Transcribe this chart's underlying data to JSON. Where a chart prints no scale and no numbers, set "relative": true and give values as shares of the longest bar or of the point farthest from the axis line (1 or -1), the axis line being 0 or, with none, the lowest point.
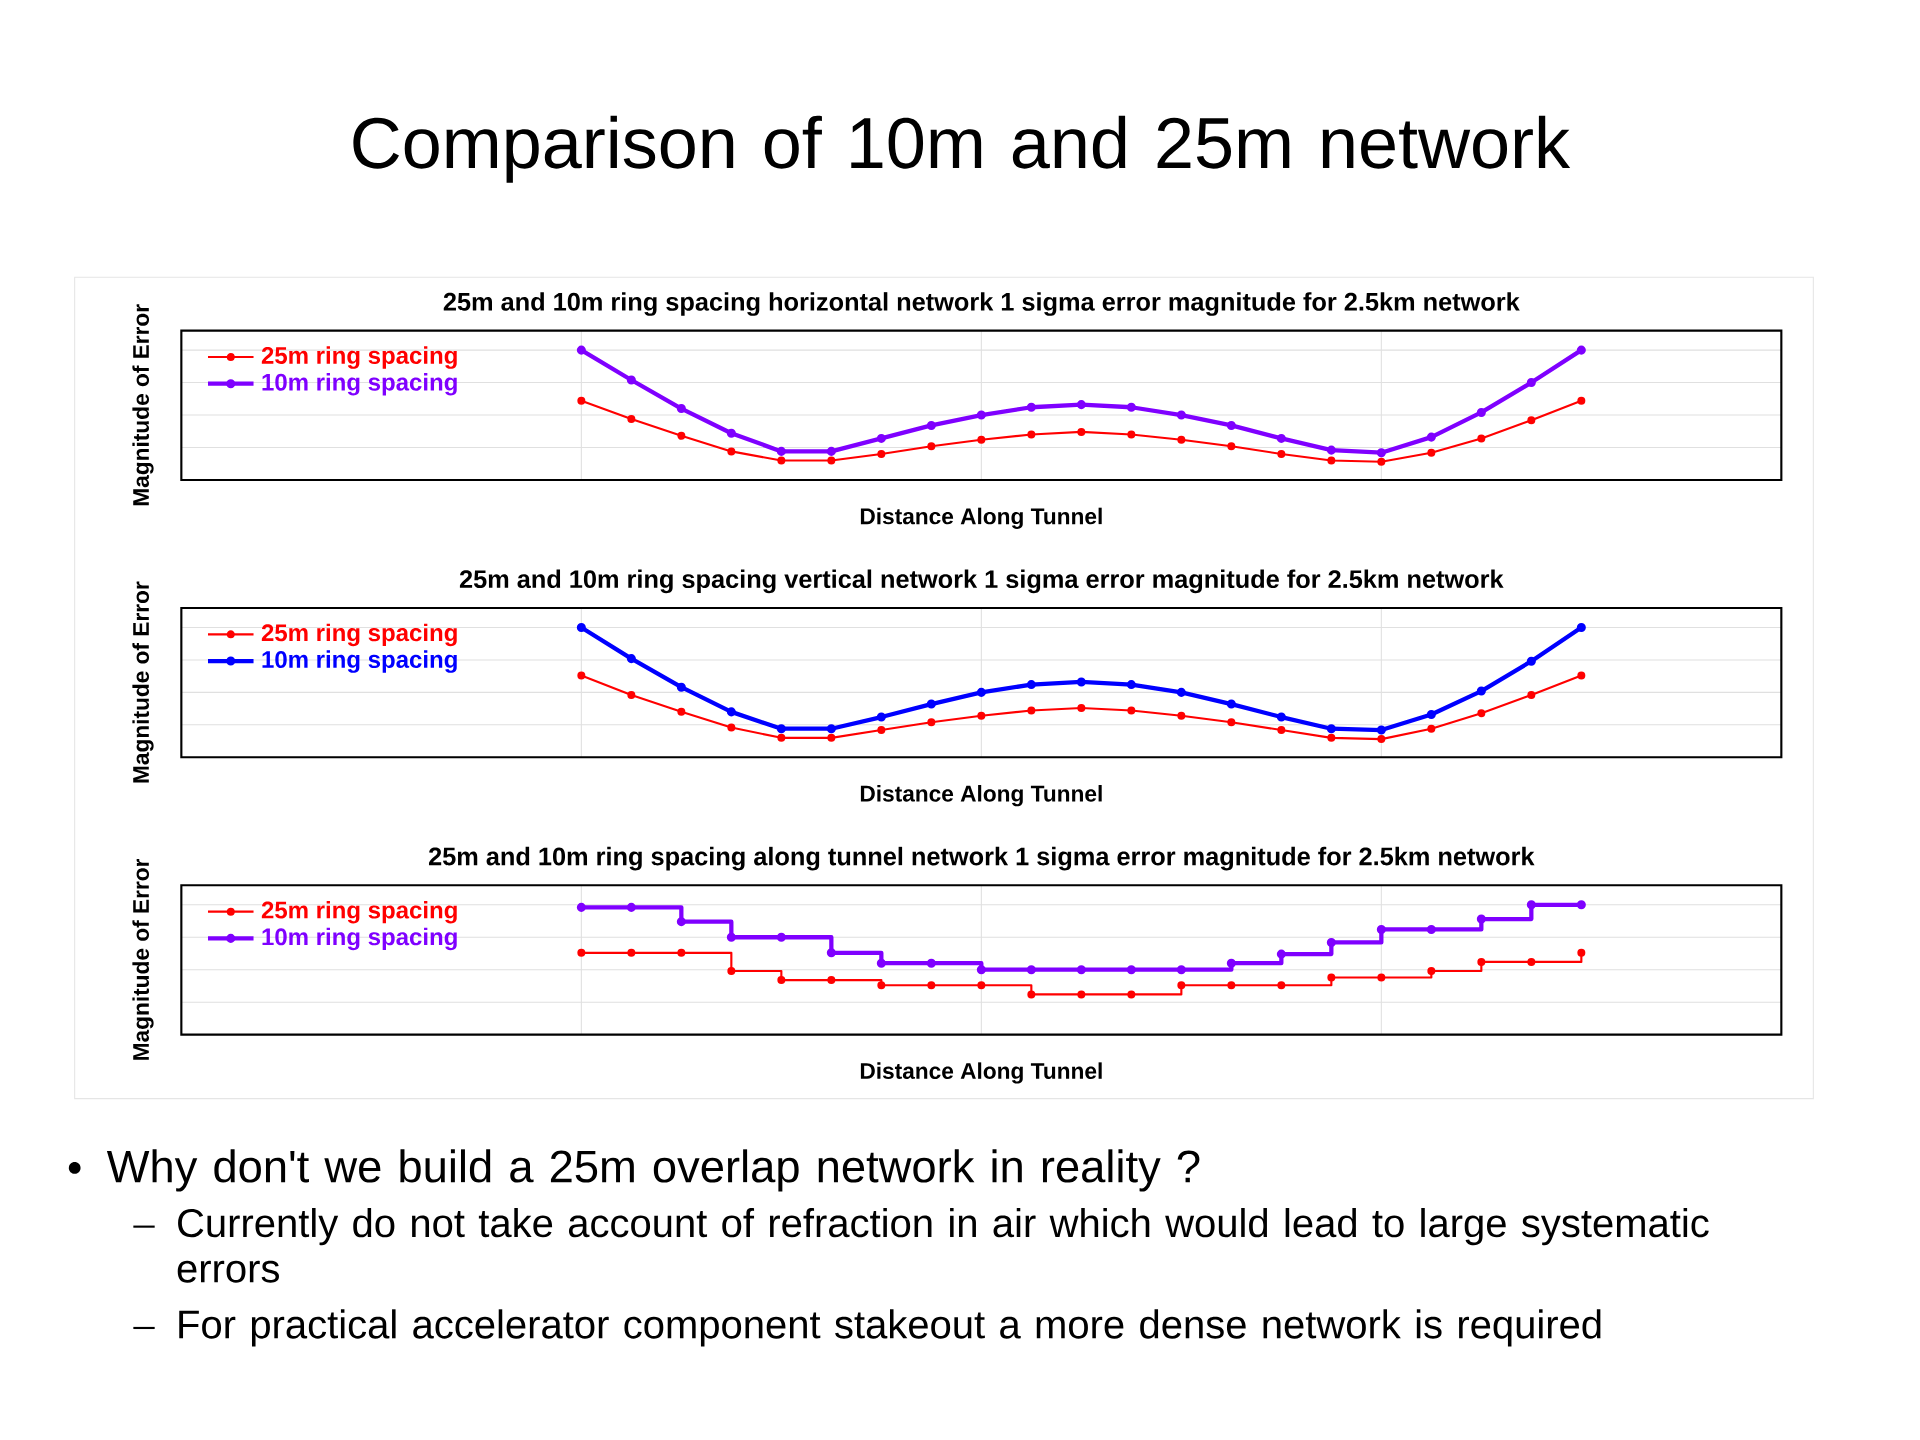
{
  "chart_data": [
    {
      "type": "other",
      "title": "Comparison of 10m and 25m network",
      "annotations": [
        "Why don't we build a 25m overlap network in reality ?",
        "Currently do not take account of refraction in air which would lead to large systematic errors",
        "For practical accelerator component stakeout a more dense network is required"
      ]
    },
    {
      "type": "line",
      "title": "25m and 10m ring spacing horizontal network 1 sigma error magnitude for 2.5km network",
      "xlabel": "Distance Along Tunnel",
      "ylabel": "Magnitude of Error",
      "relative": true,
      "legend": "top left",
      "marker": "circle",
      "grid": true,
      "categories": [
        null,
        null,
        null,
        null,
        null,
        null,
        null,
        null,
        null,
        null,
        null,
        null,
        null,
        null,
        null,
        null,
        null,
        null,
        null,
        null,
        null,
        null,
        null,
        null,
        null,
        null,
        null,
        null,
        null,
        null,
        null,
        null,
        null
      ],
      "series": [
        {
          "name": "25m ring spacing",
          "color": "#ff0000",
          "values": [
            null,
            null,
            null,
            null,
            null,
            null,
            null,
            null,
            0.61,
            0.47,
            0.34,
            0.22,
            0.15,
            0.15,
            0.2,
            0.26,
            0.31,
            0.35,
            0.37,
            0.35,
            0.31,
            0.26,
            0.2,
            0.15,
            0.14,
            0.21,
            0.32,
            0.46,
            0.61,
            null,
            null,
            null,
            null
          ]
        },
        {
          "name": "10m ring spacing",
          "color": "#7f00ff",
          "values": [
            null,
            null,
            null,
            null,
            null,
            null,
            null,
            null,
            1.0,
            0.77,
            0.55,
            0.36,
            0.22,
            0.22,
            0.32,
            0.42,
            0.5,
            0.56,
            0.58,
            0.56,
            0.5,
            0.42,
            0.32,
            0.23,
            0.21,
            0.33,
            0.52,
            0.75,
            1.0,
            null,
            null,
            null,
            null
          ]
        }
      ]
    },
    {
      "type": "line",
      "title": "25m and 10m ring spacing vertical network 1 sigma error magnitude for 2.5km network",
      "xlabel": "Distance Along Tunnel",
      "ylabel": "Magnitude of Error",
      "relative": true,
      "legend": "top left",
      "marker": "circle",
      "grid": true,
      "categories": [
        null,
        null,
        null,
        null,
        null,
        null,
        null,
        null,
        null,
        null,
        null,
        null,
        null,
        null,
        null,
        null,
        null,
        null,
        null,
        null,
        null,
        null,
        null,
        null,
        null,
        null,
        null,
        null,
        null,
        null,
        null,
        null,
        null
      ],
      "series": [
        {
          "name": "25m ring spacing",
          "color": "#ff0000",
          "values": [
            null,
            null,
            null,
            null,
            null,
            null,
            null,
            null,
            0.63,
            0.48,
            0.35,
            0.23,
            0.15,
            0.15,
            0.21,
            0.27,
            0.32,
            0.36,
            0.38,
            0.36,
            0.32,
            0.27,
            0.21,
            0.15,
            0.14,
            0.22,
            0.34,
            0.48,
            0.63,
            null,
            null,
            null,
            null
          ]
        },
        {
          "name": "10m ring spacing",
          "color": "#0000ff",
          "values": [
            null,
            null,
            null,
            null,
            null,
            null,
            null,
            null,
            1.0,
            0.76,
            0.54,
            0.35,
            0.22,
            0.22,
            0.31,
            0.41,
            0.5,
            0.56,
            0.58,
            0.56,
            0.5,
            0.41,
            0.31,
            0.22,
            0.21,
            0.33,
            0.51,
            0.74,
            1.0,
            null,
            null,
            null,
            null
          ]
        }
      ]
    },
    {
      "type": "step",
      "title": "25m and 10m ring spacing along tunnel network 1 sigma error magnitude for 2.5km network",
      "xlabel": "Distance Along Tunnel",
      "ylabel": "Magnitude of Error",
      "relative": true,
      "legend": "top left",
      "marker": "circle",
      "grid": true,
      "categories": [
        null,
        null,
        null,
        null,
        null,
        null,
        null,
        null,
        null,
        null,
        null,
        null,
        null,
        null,
        null,
        null,
        null,
        null,
        null,
        null,
        null,
        null,
        null,
        null,
        null,
        null,
        null,
        null,
        null,
        null,
        null,
        null,
        null
      ],
      "series": [
        {
          "name": "25m ring spacing",
          "color": "#ff0000",
          "values": [
            null,
            null,
            null,
            null,
            null,
            null,
            null,
            null,
            0.63,
            0.63,
            0.63,
            0.49,
            0.42,
            0.42,
            0.38,
            0.38,
            0.38,
            0.31,
            0.31,
            0.31,
            0.38,
            0.38,
            0.38,
            0.44,
            0.44,
            0.49,
            0.56,
            0.56,
            0.63,
            null,
            null,
            null,
            null
          ]
        },
        {
          "name": "10m ring spacing",
          "color": "#7f00ff",
          "values": [
            null,
            null,
            null,
            null,
            null,
            null,
            null,
            null,
            0.98,
            0.98,
            0.87,
            0.75,
            0.75,
            0.63,
            0.55,
            0.55,
            0.5,
            0.5,
            0.5,
            0.5,
            0.5,
            0.55,
            0.62,
            0.71,
            0.81,
            0.81,
            0.89,
            1.0,
            1.0,
            null,
            null,
            null,
            null
          ]
        }
      ]
    }
  ]
}
